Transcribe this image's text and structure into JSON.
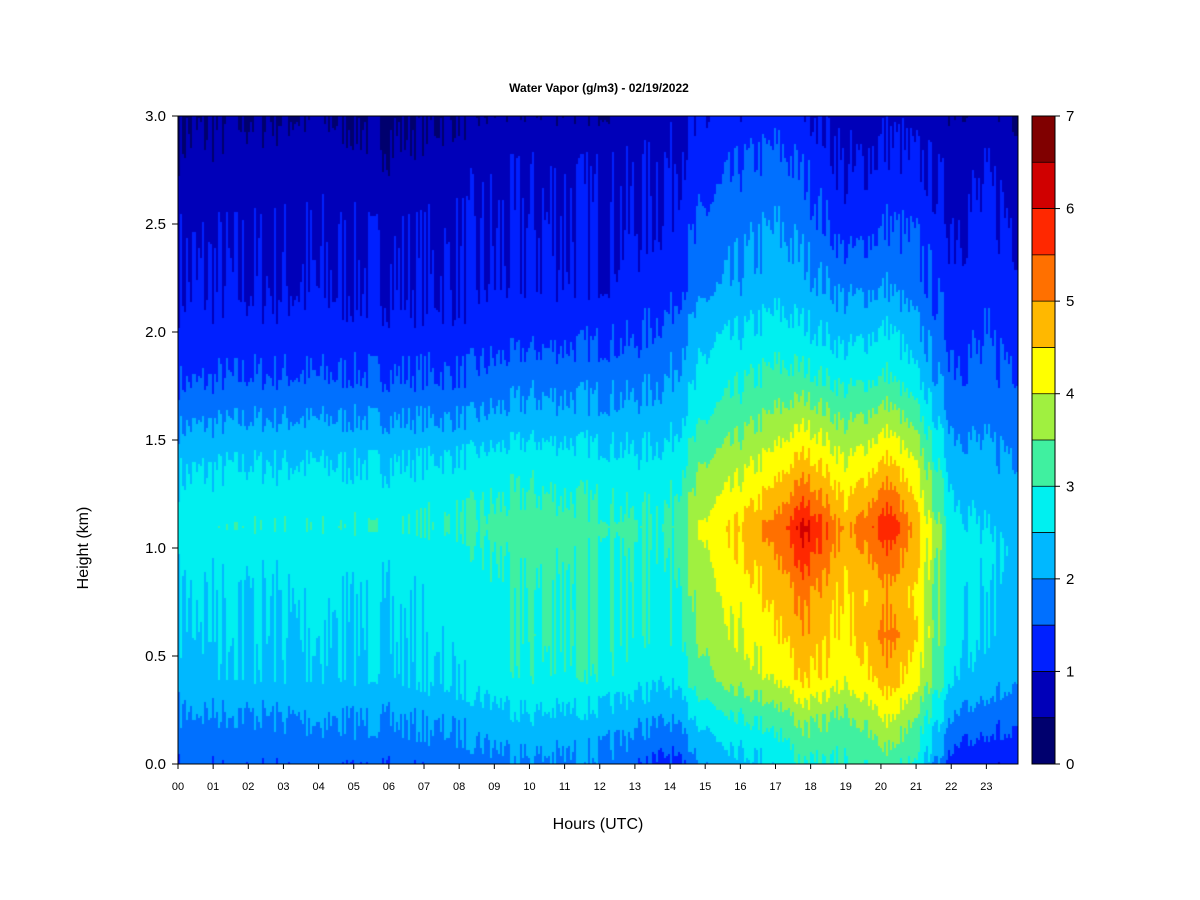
{
  "chart_data": {
    "type": "heatmap",
    "title": "Water Vapor (g/m3) - 02/19/2022",
    "xlabel": "Hours (UTC)",
    "ylabel": "Height (km)",
    "x_ticks": [
      "00",
      "01",
      "02",
      "03",
      "04",
      "05",
      "06",
      "07",
      "08",
      "09",
      "10",
      "11",
      "12",
      "13",
      "14",
      "15",
      "16",
      "17",
      "18",
      "19",
      "20",
      "21",
      "22",
      "23"
    ],
    "xlim": [
      0,
      23.9
    ],
    "y_ticks": [
      "0.0",
      "0.5",
      "1.0",
      "1.5",
      "2.0",
      "2.5",
      "3.0"
    ],
    "ylim": [
      0,
      3.0
    ],
    "colorbar": {
      "ticks": [
        "0",
        "1",
        "2",
        "3",
        "4",
        "5",
        "6",
        "7"
      ],
      "range": [
        0,
        7
      ],
      "levels": [
        0,
        0.5,
        1,
        1.5,
        2,
        2.5,
        3,
        3.5,
        4,
        4.5,
        5,
        5.5,
        6,
        6.5,
        7
      ],
      "colors": [
        "#00006e",
        "#0000b9",
        "#0020ff",
        "#0070ff",
        "#00b8ff",
        "#00f0f0",
        "#40f0a0",
        "#a0f040",
        "#ffff00",
        "#ffb800",
        "#ff7000",
        "#ff2800",
        "#d00000",
        "#800000"
      ]
    },
    "profiles": [
      {
        "hour": 0,
        "values": [
          1.6,
          1.9,
          2.3,
          2.4,
          2.5,
          2.7,
          2.8,
          2.7,
          2.4,
          1.9,
          1.4,
          1.2,
          1.0,
          0.9,
          0.6,
          0.4
        ]
      },
      {
        "hour": 2,
        "values": [
          1.6,
          1.9,
          2.4,
          2.5,
          2.5,
          2.7,
          2.9,
          2.8,
          2.5,
          2.0,
          1.5,
          1.2,
          1.0,
          0.9,
          0.7,
          0.5
        ]
      },
      {
        "hour": 4,
        "values": [
          1.6,
          2.0,
          2.4,
          2.5,
          2.6,
          2.7,
          2.9,
          2.8,
          2.5,
          2.0,
          1.5,
          1.2,
          1.0,
          0.9,
          0.8,
          0.5
        ]
      },
      {
        "hour": 6,
        "values": [
          1.6,
          2.0,
          2.4,
          2.5,
          2.6,
          2.7,
          2.9,
          2.8,
          2.5,
          2.0,
          1.5,
          1.2,
          1.0,
          0.9,
          0.6,
          0.4
        ]
      },
      {
        "hour": 8,
        "values": [
          1.7,
          2.1,
          2.6,
          2.7,
          2.7,
          2.8,
          3.0,
          2.9,
          2.6,
          2.0,
          1.5,
          1.2,
          1.0,
          0.9,
          0.8,
          0.5
        ]
      },
      {
        "hour": 10,
        "values": [
          1.9,
          2.4,
          2.9,
          3.0,
          3.0,
          3.2,
          3.3,
          3.1,
          2.8,
          2.2,
          1.8,
          1.3,
          1.1,
          1.0,
          0.9,
          0.6
        ]
      },
      {
        "hour": 12,
        "values": [
          1.9,
          2.3,
          2.9,
          3.1,
          3.0,
          3.1,
          3.2,
          3.0,
          2.7,
          2.2,
          1.8,
          1.4,
          1.1,
          1.0,
          0.9,
          0.6
        ]
      },
      {
        "hour": 13,
        "values": [
          1.6,
          2.1,
          2.7,
          2.9,
          2.9,
          3.0,
          3.1,
          2.9,
          2.6,
          2.2,
          1.8,
          1.4,
          1.2,
          1.0,
          0.9,
          0.7
        ]
      },
      {
        "hour": 14,
        "values": [
          1.3,
          2.0,
          2.6,
          2.9,
          2.9,
          3.0,
          3.1,
          3.0,
          2.7,
          2.3,
          2.0,
          1.7,
          1.3,
          1.1,
          1.0,
          0.8
        ]
      },
      {
        "hour": 15,
        "values": [
          2.0,
          2.6,
          3.4,
          3.6,
          3.8,
          4.0,
          4.1,
          3.9,
          3.5,
          3.0,
          2.6,
          2.4,
          1.9,
          1.6,
          1.2,
          1.0
        ]
      },
      {
        "hour": 16,
        "values": [
          2.3,
          2.9,
          3.7,
          4.0,
          4.2,
          4.5,
          4.6,
          4.3,
          3.8,
          3.3,
          2.9,
          2.5,
          2.1,
          1.8,
          1.5,
          1.1
        ]
      },
      {
        "hour": 17,
        "values": [
          2.5,
          3.1,
          4.0,
          4.4,
          4.6,
          5.0,
          5.2,
          4.8,
          4.2,
          3.6,
          3.1,
          2.7,
          2.3,
          2.0,
          1.6,
          1.3
        ]
      },
      {
        "hour": 17.8,
        "values": [
          3.0,
          3.6,
          4.6,
          4.9,
          5.2,
          5.9,
          6.2,
          5.6,
          4.7,
          3.9,
          3.1,
          2.6,
          2.2,
          1.8,
          1.4,
          1.1
        ]
      },
      {
        "hour": 19,
        "values": [
          3.0,
          3.3,
          4.1,
          4.3,
          4.4,
          4.7,
          4.8,
          4.5,
          4.0,
          3.4,
          2.8,
          2.3,
          1.9,
          1.2,
          0.9,
          0.8
        ]
      },
      {
        "hour": 20.2,
        "values": [
          3.2,
          4.0,
          4.8,
          5.2,
          4.9,
          5.5,
          5.9,
          5.5,
          4.6,
          3.8,
          3.0,
          2.6,
          2.0,
          1.5,
          1.1,
          0.9
        ]
      },
      {
        "hour": 21,
        "values": [
          2.8,
          3.3,
          4.1,
          4.4,
          4.3,
          4.6,
          4.7,
          4.4,
          3.9,
          3.2,
          2.5,
          2.1,
          1.7,
          1.4,
          1.0,
          0.8
        ]
      },
      {
        "hour": 22,
        "values": [
          1.3,
          2.0,
          2.6,
          2.8,
          2.8,
          2.8,
          2.8,
          2.6,
          2.3,
          1.9,
          1.6,
          1.4,
          1.2,
          1.0,
          0.8,
          0.6
        ]
      },
      {
        "hour": 23,
        "values": [
          1.0,
          1.6,
          2.2,
          2.4,
          2.4,
          2.5,
          2.4,
          2.3,
          2.1,
          1.8,
          1.6,
          1.4,
          1.3,
          1.1,
          0.9,
          0.7
        ]
      },
      {
        "hour": 23.9,
        "values": [
          1.3,
          1.7,
          2.2,
          2.4,
          2.4,
          2.5,
          2.4,
          2.3,
          2.1,
          1.8,
          1.6,
          1.4,
          1.2,
          1.0,
          0.8,
          0.5
        ]
      }
    ],
    "profile_heights_km": [
      0.0,
      0.2,
      0.4,
      0.6,
      0.8,
      1.0,
      1.1,
      1.2,
      1.4,
      1.6,
      1.8,
      2.0,
      2.2,
      2.5,
      2.8,
      3.0
    ],
    "grid": false,
    "legend": "colorbar-right"
  }
}
